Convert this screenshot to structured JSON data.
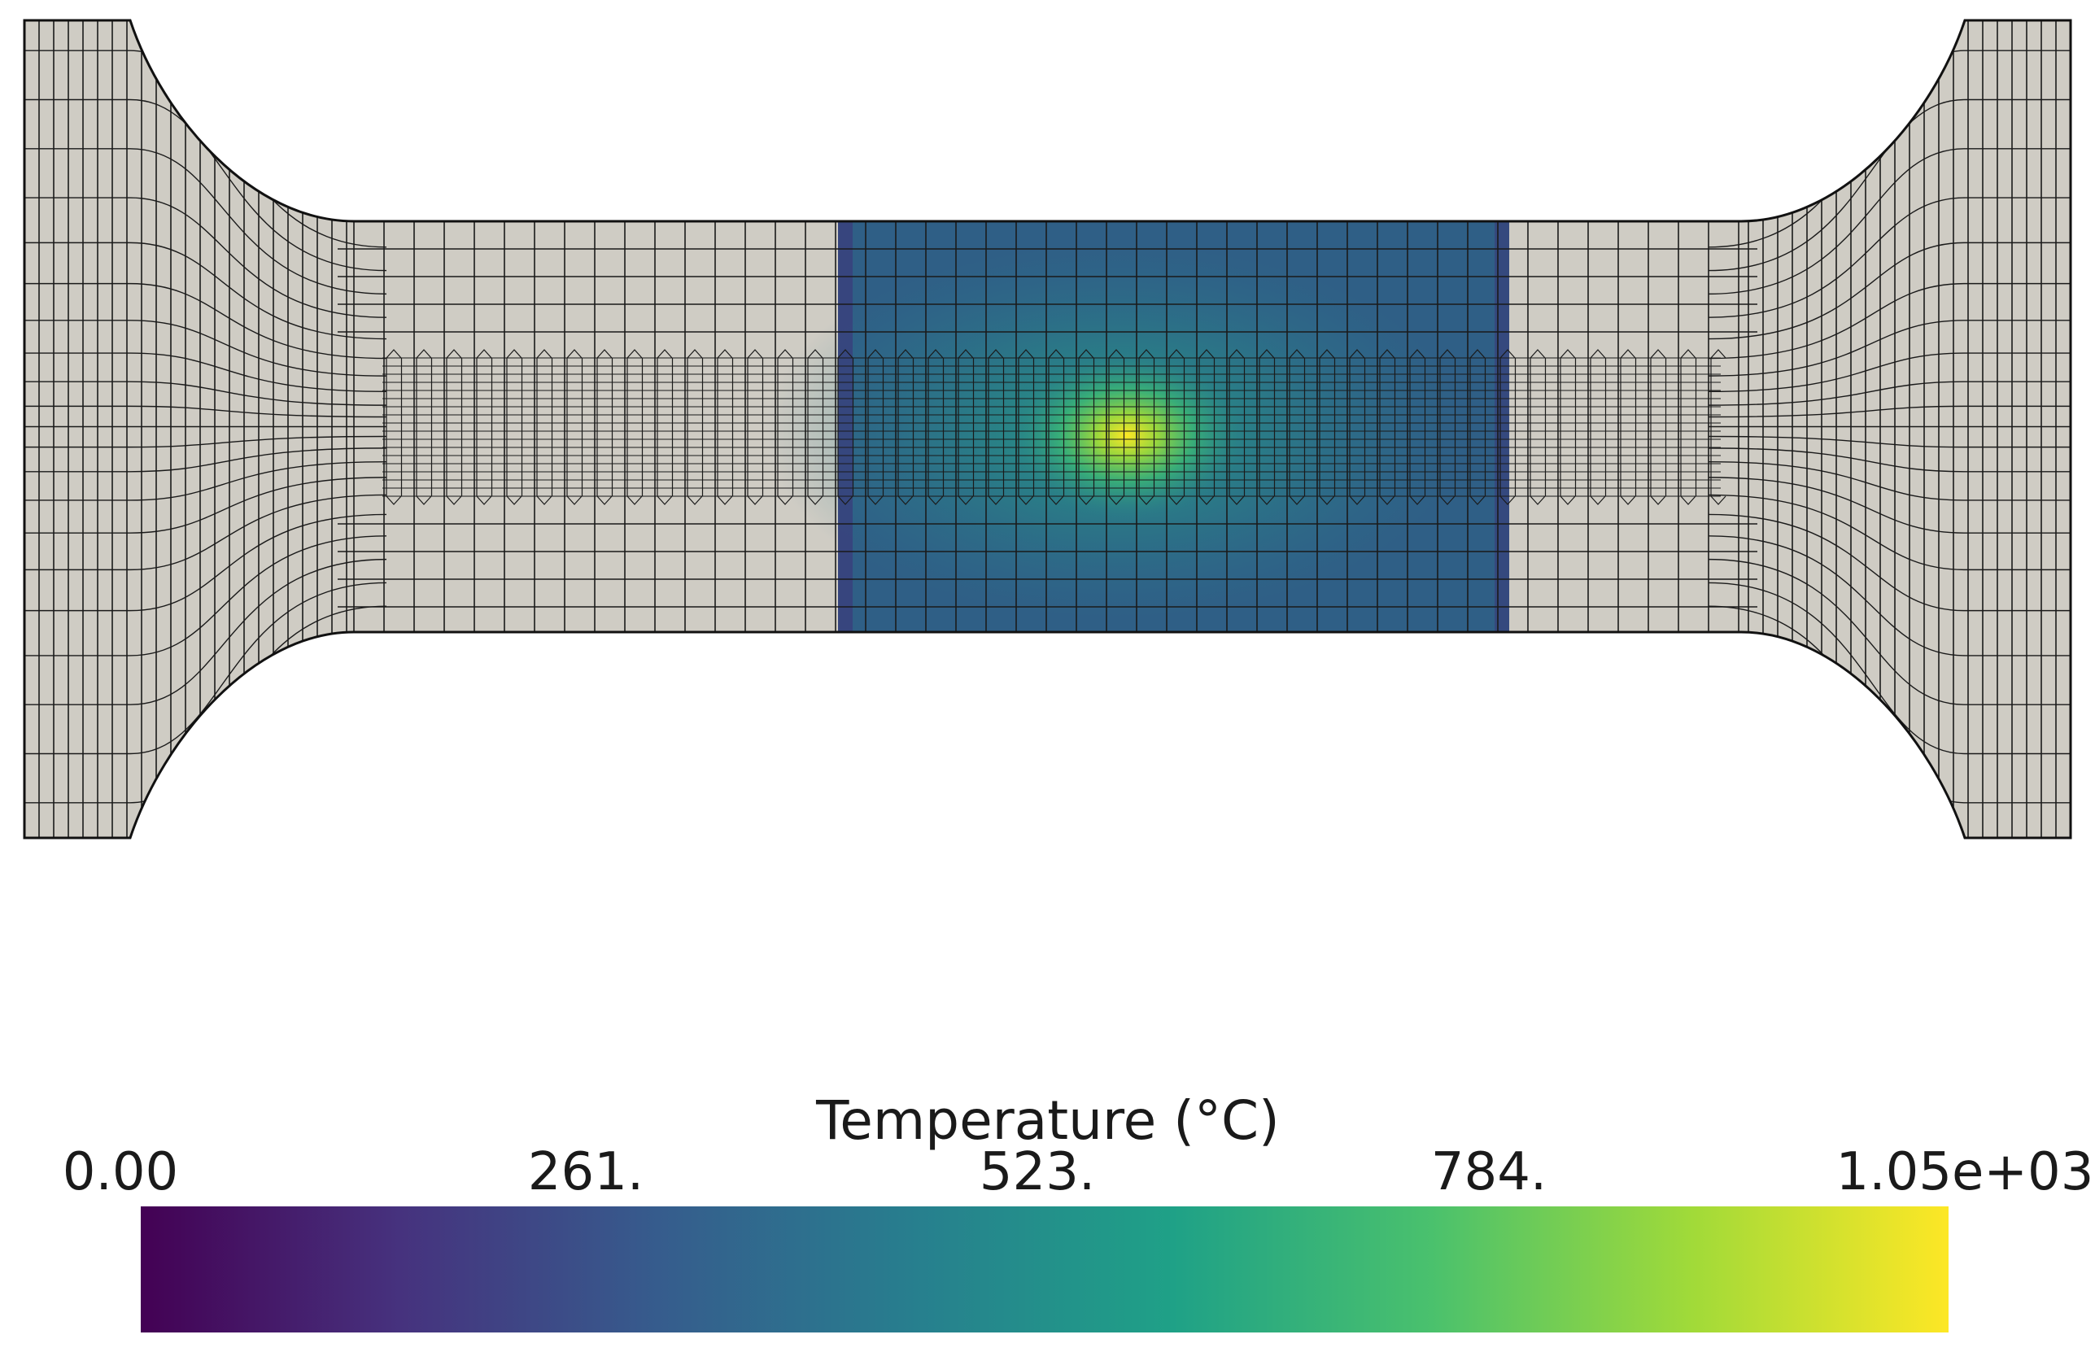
{
  "colorbar": {
    "title": "Temperature (°C)",
    "ticks": [
      "0.00",
      "261.",
      "523.",
      "784.",
      "1.05e+03"
    ],
    "min": 0,
    "max": 1050,
    "colormap": "viridis",
    "stops": [
      "#440154",
      "#46327e",
      "#365c8d",
      "#277f8e",
      "#1fa187",
      "#4ac16d",
      "#a0da39",
      "#fde725"
    ]
  },
  "specimen": {
    "base_color": "#cfccc4",
    "mesh_line_color": "#1a1a1a",
    "heated_zone_color": "#2f5f86",
    "hotspot_color": "#e8e01f"
  }
}
